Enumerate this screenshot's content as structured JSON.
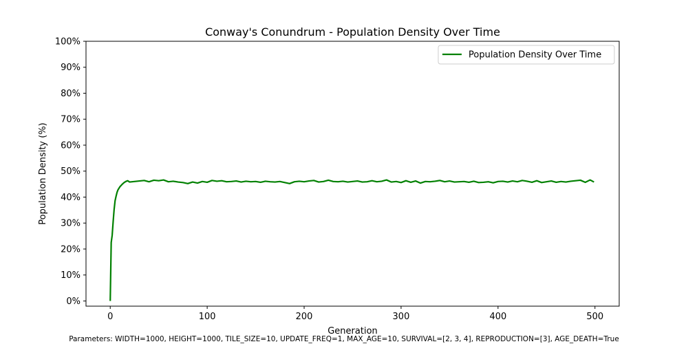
{
  "chart_data": {
    "type": "line",
    "title": "Conway's Conundrum - Population Density Over Time",
    "xlabel": "Generation",
    "ylabel": "Population Density (%)",
    "xlim": [
      -25,
      525
    ],
    "ylim": [
      -2,
      100
    ],
    "xticks": [
      0,
      100,
      200,
      300,
      400,
      500
    ],
    "xtick_labels": [
      "0",
      "100",
      "200",
      "300",
      "400",
      "500"
    ],
    "yticks": [
      0,
      10,
      20,
      30,
      40,
      50,
      60,
      70,
      80,
      90,
      100
    ],
    "ytick_labels": [
      "0%",
      "10%",
      "20%",
      "30%",
      "40%",
      "50%",
      "60%",
      "70%",
      "80%",
      "90%",
      "100%"
    ],
    "grid": false,
    "legend_position": "upper right",
    "series": [
      {
        "name": "Population Density Over Time",
        "color": "#008000",
        "x": [
          0,
          1,
          2,
          3,
          4,
          5,
          6,
          7,
          8,
          10,
          12,
          14,
          16,
          18,
          20,
          25,
          30,
          35,
          40,
          45,
          50,
          55,
          60,
          65,
          70,
          75,
          80,
          85,
          90,
          95,
          100,
          105,
          110,
          115,
          120,
          125,
          130,
          135,
          140,
          145,
          150,
          155,
          160,
          165,
          170,
          175,
          180,
          185,
          190,
          195,
          200,
          205,
          210,
          215,
          220,
          225,
          230,
          235,
          240,
          245,
          250,
          255,
          260,
          265,
          270,
          275,
          280,
          285,
          290,
          295,
          300,
          305,
          310,
          315,
          320,
          325,
          330,
          335,
          340,
          345,
          350,
          355,
          360,
          365,
          370,
          375,
          380,
          385,
          390,
          395,
          400,
          405,
          410,
          415,
          420,
          425,
          430,
          435,
          440,
          445,
          450,
          455,
          460,
          465,
          470,
          475,
          480,
          485,
          490,
          495,
          499
        ],
        "values": [
          0,
          22.5,
          25.3,
          30.5,
          35.2,
          38.6,
          40.3,
          41.8,
          42.8,
          44.0,
          44.8,
          45.5,
          46.0,
          46.3,
          45.8,
          46.0,
          46.2,
          46.4,
          45.9,
          46.5,
          46.3,
          46.6,
          45.9,
          46.1,
          45.8,
          45.6,
          45.2,
          45.8,
          45.4,
          46.0,
          45.7,
          46.4,
          46.1,
          46.3,
          45.9,
          46.0,
          46.2,
          45.8,
          46.1,
          45.9,
          46.0,
          45.7,
          46.1,
          45.9,
          45.8,
          46.0,
          45.6,
          45.2,
          45.9,
          46.1,
          45.9,
          46.2,
          46.4,
          45.8,
          46.0,
          46.5,
          46.0,
          45.9,
          46.1,
          45.8,
          46.0,
          46.2,
          45.8,
          45.9,
          46.3,
          45.9,
          46.1,
          46.6,
          45.8,
          46.0,
          45.6,
          46.3,
          45.7,
          46.2,
          45.4,
          46.0,
          45.9,
          46.1,
          46.4,
          45.9,
          46.2,
          45.8,
          45.9,
          46.0,
          45.7,
          46.1,
          45.6,
          45.7,
          45.9,
          45.5,
          46.0,
          46.1,
          45.8,
          46.2,
          45.9,
          46.4,
          46.1,
          45.7,
          46.3,
          45.6,
          45.9,
          46.2,
          45.7,
          46.0,
          45.8,
          46.1,
          46.3,
          46.5,
          45.7,
          46.6,
          45.8
        ]
      }
    ]
  },
  "footer": {
    "parameters": "Parameters: WIDTH=1000, HEIGHT=1000, TILE_SIZE=10, UPDATE_FREQ=1, MAX_AGE=10, SURVIVAL=[2, 3, 4], REPRODUCTION=[3], AGE_DEATH=True"
  }
}
